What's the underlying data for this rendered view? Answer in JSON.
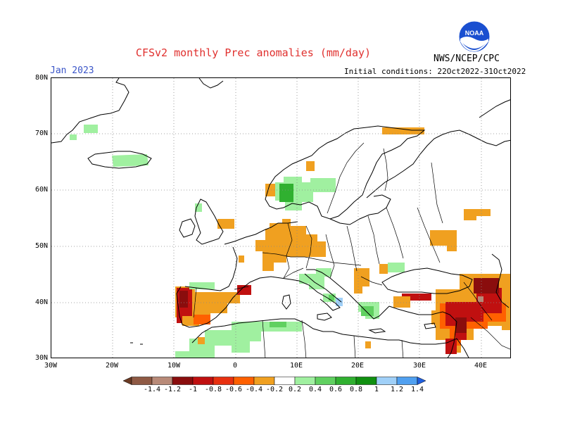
{
  "header": {
    "title": "CFSv2 monthly Prec anomalies (mm/day)",
    "month": "Jan 2023",
    "initial_conditions": "Initial conditions: 22Oct2022-31Oct2022",
    "org": "NWS/NCEP/CPC",
    "logo_text": "NOAA"
  },
  "map": {
    "lon_labels": [
      "30W",
      "20W",
      "10W",
      "0",
      "10E",
      "20E",
      "30E",
      "40E"
    ],
    "lat_labels": [
      "80N",
      "70N",
      "60N",
      "50N",
      "40N",
      "30N"
    ],
    "lon_range": [
      -30,
      45
    ],
    "lat_range": [
      30,
      80
    ],
    "grid": "dotted"
  },
  "legend": {
    "labels": [
      "-1.4",
      "-1.2",
      "-1",
      "-0.8",
      "-0.6",
      "-0.4",
      "-0.2",
      "0.2",
      "0.4",
      "0.6",
      "0.8",
      "1",
      "1.2",
      "1.4"
    ],
    "colors": [
      "#6b3a24",
      "#8f5a44",
      "#b88a78",
      "#8a0d0d",
      "#c01010",
      "#e83010",
      "#ff6000",
      "#f0a020",
      "#ffffff",
      "#a0f0a0",
      "#60d060",
      "#30b030",
      "#109010",
      "#a0d0f8",
      "#50a0f0",
      "#2060e0"
    ]
  },
  "anomalies": {
    "orange": "#f0a020",
    "red_orange": "#ff6000",
    "red": "#c01010",
    "dark_red": "#8a0d0d",
    "pink_brown": "#b88a78",
    "light_green": "#a0f0a0",
    "green": "#60d060",
    "mid_green": "#30b030",
    "light_blue": "#a0d0f8"
  }
}
